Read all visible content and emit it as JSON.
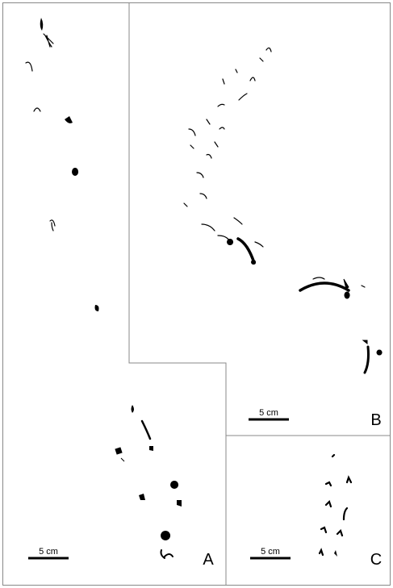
{
  "panels": [
    {
      "label": "A",
      "scale_bar": "5 cm"
    },
    {
      "label": "B",
      "scale_bar": "5 cm"
    },
    {
      "label": "C",
      "scale_bar": "5 cm"
    }
  ]
}
